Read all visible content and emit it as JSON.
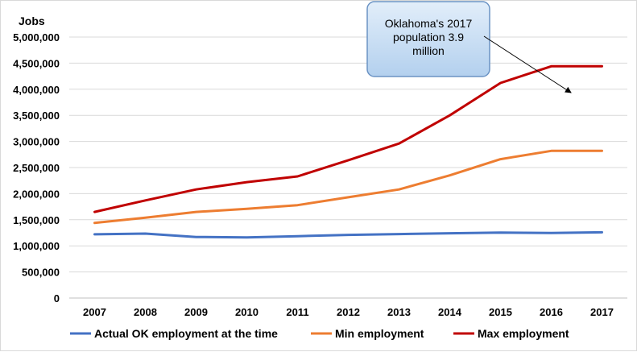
{
  "chart_data": {
    "type": "line",
    "title": "",
    "xlabel": "",
    "ylabel": "Jobs",
    "ylim": [
      0,
      5000000
    ],
    "yticks": [
      "5,000,000",
      "4,500,000",
      "4,000,000",
      "3,500,000",
      "3,000,000",
      "2,500,000",
      "2,000,000",
      "1,500,000",
      "1,000,000",
      "500,000",
      "0"
    ],
    "categories": [
      "2007",
      "2008",
      "2009",
      "2010",
      "2011",
      "2012",
      "2013",
      "2014",
      "2015",
      "2016",
      "2017"
    ],
    "grid": true,
    "legend_position": "bottom",
    "series": [
      {
        "name": "Actual OK employment at the time",
        "color": "#4472c4",
        "values": [
          1220000,
          1235000,
          1170000,
          1160000,
          1185000,
          1210000,
          1225000,
          1240000,
          1255000,
          1245000,
          1260000
        ]
      },
      {
        "name": "Min employment",
        "color": "#ed7d31",
        "values": [
          1440000,
          1540000,
          1650000,
          1710000,
          1780000,
          1930000,
          2080000,
          2350000,
          2660000,
          2820000,
          2820000
        ]
      },
      {
        "name": "Max employment",
        "color": "#c00000",
        "values": [
          1650000,
          1870000,
          2080000,
          2220000,
          2330000,
          2640000,
          2960000,
          3500000,
          4120000,
          4440000,
          4440000
        ]
      }
    ],
    "annotation": {
      "text_lines": [
        "Oklahoma's 2017",
        "population  3.9",
        "million"
      ],
      "fill": "#c5ddf5",
      "border": "#6b93c4"
    }
  }
}
